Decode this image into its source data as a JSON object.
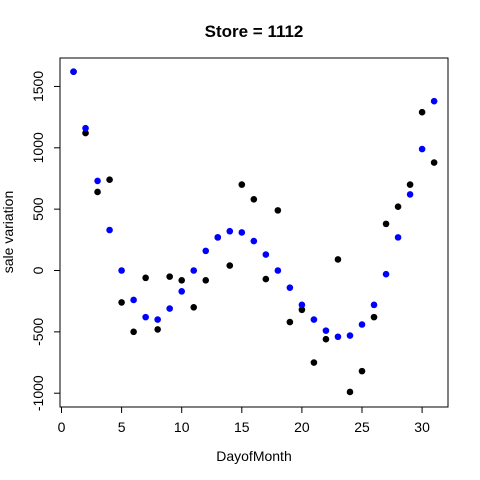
{
  "chart_data": {
    "type": "scatter",
    "title": "Store = 1112",
    "xlabel": "DayofMonth",
    "ylabel": "sale variation",
    "xlim": [
      0,
      31.5
    ],
    "ylim": [
      -1000,
      1600
    ],
    "x_ticks": [
      0,
      5,
      10,
      15,
      20,
      25,
      30
    ],
    "y_ticks": [
      -1000,
      -500,
      0,
      500,
      1000,
      1500
    ],
    "grid": false,
    "series": [
      {
        "color": "#000000",
        "x": [
          1,
          2,
          3,
          4,
          5,
          6,
          7,
          8,
          9,
          10,
          11,
          12,
          13,
          14,
          15,
          16,
          17,
          18,
          19,
          20,
          21,
          22,
          23,
          24,
          25,
          26,
          27,
          28,
          29,
          30,
          31
        ],
        "y": [
          1620,
          1120,
          640,
          740,
          -260,
          -500,
          -60,
          -480,
          -50,
          -80,
          -300,
          -80,
          270,
          40,
          700,
          580,
          -70,
          490,
          -420,
          -320,
          -750,
          -560,
          90,
          -990,
          -820,
          -380,
          380,
          520,
          700,
          1290,
          880
        ]
      },
      {
        "color": "#0000ff",
        "x": [
          1,
          2,
          3,
          4,
          5,
          6,
          7,
          8,
          9,
          10,
          11,
          12,
          13,
          14,
          15,
          16,
          17,
          18,
          19,
          20,
          21,
          22,
          23,
          24,
          25,
          26,
          27,
          28,
          29,
          30,
          31
        ],
        "y": [
          1620,
          1160,
          730,
          330,
          0,
          -240,
          -380,
          -400,
          -310,
          -170,
          0,
          160,
          270,
          320,
          310,
          240,
          130,
          0,
          -140,
          -280,
          -400,
          -490,
          -540,
          -530,
          -440,
          -280,
          -30,
          270,
          620,
          990,
          1380
        ]
      }
    ]
  }
}
